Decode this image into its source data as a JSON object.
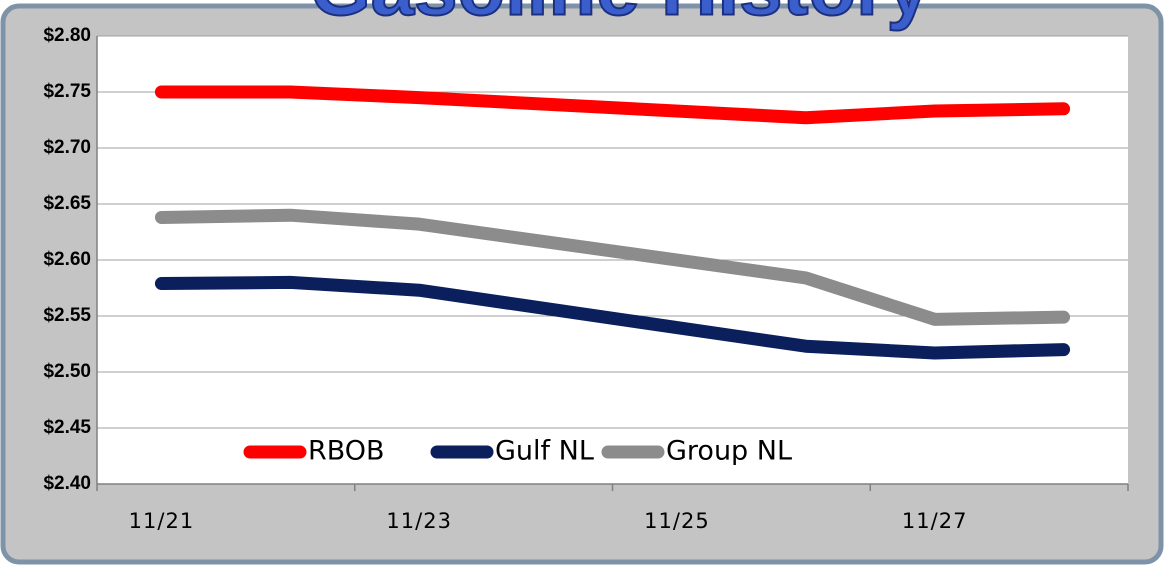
{
  "chart_data": {
    "type": "line",
    "title": "Gasoline History",
    "categories": [
      "11/21",
      null,
      "11/23",
      null,
      "11/25",
      null,
      "11/27",
      null
    ],
    "series": [
      {
        "name": "RBOB",
        "color": "#ff0000",
        "values": [
          2.75,
          2.75,
          2.745,
          null,
          null,
          2.727,
          2.733,
          2.735
        ]
      },
      {
        "name": "Gulf NL",
        "color": "#0a1f5c",
        "values": [
          2.579,
          2.58,
          2.573,
          null,
          null,
          2.523,
          2.517,
          2.52
        ]
      },
      {
        "name": "Group NL",
        "color": "#8c8c8c",
        "values": [
          2.638,
          2.64,
          2.632,
          null,
          null,
          2.584,
          2.547,
          2.549
        ]
      }
    ],
    "span_gaps": true,
    "ylim": [
      2.4,
      2.8
    ],
    "yticks": [
      {
        "value": 2.4,
        "label": "$2.40"
      },
      {
        "value": 2.45,
        "label": "$2.45"
      },
      {
        "value": 2.5,
        "label": "$2.50"
      },
      {
        "value": 2.55,
        "label": "$2.55"
      },
      {
        "value": 2.6,
        "label": "$2.60"
      },
      {
        "value": 2.65,
        "label": "$2.65"
      },
      {
        "value": 2.7,
        "label": "$2.70"
      },
      {
        "value": 2.75,
        "label": "$2.75"
      },
      {
        "value": 2.8,
        "label": "$2.80"
      }
    ],
    "grid": true
  }
}
